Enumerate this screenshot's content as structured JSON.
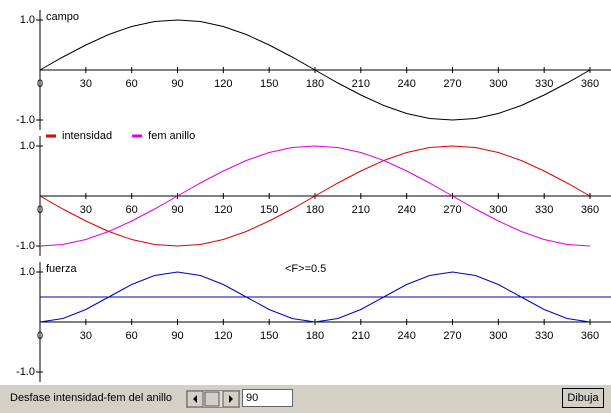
{
  "chart_data": [
    {
      "type": "line",
      "title": "campo",
      "x": [
        0,
        15,
        30,
        45,
        60,
        75,
        90,
        105,
        120,
        135,
        150,
        165,
        180,
        195,
        210,
        225,
        240,
        255,
        270,
        285,
        300,
        315,
        330,
        345,
        360
      ],
      "series": [
        {
          "name": "campo",
          "color": "#000000",
          "values": [
            0,
            0.26,
            0.5,
            0.71,
            0.87,
            0.97,
            1,
            0.97,
            0.87,
            0.71,
            0.5,
            0.26,
            0,
            -0.26,
            -0.5,
            -0.71,
            -0.87,
            -0.97,
            -1,
            -0.97,
            -0.87,
            -0.71,
            -0.5,
            -0.26,
            0
          ]
        }
      ],
      "xlim": [
        0,
        360
      ],
      "ylim": [
        -1.2,
        1.2
      ],
      "xticks": [
        0,
        30,
        60,
        90,
        120,
        150,
        180,
        210,
        240,
        270,
        300,
        330,
        360
      ],
      "yticks": [
        {
          "value": 1,
          "label": "1.0"
        },
        {
          "value": -1,
          "label": "-1.0"
        }
      ]
    },
    {
      "type": "line",
      "x": [
        0,
        15,
        30,
        45,
        60,
        75,
        90,
        105,
        120,
        135,
        150,
        165,
        180,
        195,
        210,
        225,
        240,
        255,
        270,
        285,
        300,
        315,
        330,
        345,
        360
      ],
      "series": [
        {
          "name": "intensidad",
          "color": "#e00000",
          "values": [
            0,
            -0.26,
            -0.5,
            -0.71,
            -0.87,
            -0.97,
            -1,
            -0.97,
            -0.87,
            -0.71,
            -0.5,
            -0.26,
            0,
            0.26,
            0.5,
            0.71,
            0.87,
            0.97,
            1,
            0.97,
            0.87,
            0.71,
            0.5,
            0.26,
            0
          ]
        },
        {
          "name": "fem anillo",
          "color": "#e000e0",
          "values": [
            -1,
            -0.97,
            -0.87,
            -0.71,
            -0.5,
            -0.26,
            0,
            0.26,
            0.5,
            0.71,
            0.87,
            0.97,
            1,
            0.97,
            0.87,
            0.71,
            0.5,
            0.26,
            0,
            -0.26,
            -0.5,
            -0.71,
            -0.87,
            -0.97,
            -1
          ]
        }
      ],
      "xlim": [
        0,
        360
      ],
      "ylim": [
        -1.2,
        1.2
      ],
      "xticks": [
        0,
        30,
        60,
        90,
        120,
        150,
        180,
        210,
        240,
        270,
        300,
        330,
        360
      ],
      "yticks": [
        {
          "value": 1,
          "label": "1.0"
        },
        {
          "value": -1,
          "label": "-1.0"
        }
      ]
    },
    {
      "type": "line",
      "title": "fuerza",
      "annotation": "<F>=0.5",
      "average": 0.5,
      "x": [
        0,
        15,
        30,
        45,
        60,
        75,
        90,
        105,
        120,
        135,
        150,
        165,
        180,
        195,
        210,
        225,
        240,
        255,
        270,
        285,
        300,
        315,
        330,
        345,
        360
      ],
      "series": [
        {
          "name": "fuerza",
          "color": "#0000c0",
          "values": [
            0,
            0.07,
            0.25,
            0.5,
            0.75,
            0.93,
            1,
            0.93,
            0.75,
            0.5,
            0.25,
            0.07,
            0,
            0.07,
            0.25,
            0.5,
            0.75,
            0.93,
            1,
            0.93,
            0.75,
            0.5,
            0.25,
            0.07,
            0
          ]
        }
      ],
      "xlim": [
        0,
        360
      ],
      "ylim": [
        -1.2,
        1.2
      ],
      "xticks": [
        0,
        30,
        60,
        90,
        120,
        150,
        180,
        210,
        240,
        270,
        300,
        330,
        360
      ],
      "yticks": [
        {
          "value": 1,
          "label": "1.0"
        },
        {
          "value": -1,
          "label": "-1.0"
        }
      ]
    }
  ],
  "controls": {
    "label": "Desfase intensidad-fem del anillo",
    "value": "90",
    "button": "Dibuja"
  }
}
